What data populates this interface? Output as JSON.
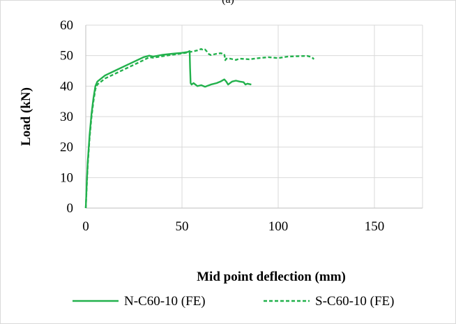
{
  "header_fragment": "(a)",
  "chart_data": {
    "type": "line",
    "xlabel": "Mid point deflection (mm)",
    "ylabel": "Load (kN)",
    "xlim": [
      0,
      175
    ],
    "ylim": [
      0,
      60
    ],
    "x_ticks": [
      0,
      50,
      100,
      150
    ],
    "y_ticks": [
      0,
      10,
      20,
      30,
      40,
      50,
      60
    ],
    "grid": "vertical and horizontal major gridlines",
    "legend_position": "bottom",
    "colors": {
      "series": "#22b14c",
      "grid": "#d9d9d9",
      "axis": "#bfbfbf"
    },
    "series": [
      {
        "name": "N-C60-10 (FE)",
        "style": "solid",
        "points": [
          [
            0,
            0
          ],
          [
            0.5,
            8
          ],
          [
            1,
            15
          ],
          [
            2,
            24
          ],
          [
            3,
            31
          ],
          [
            4,
            36
          ],
          [
            5,
            40
          ],
          [
            6,
            41.5
          ],
          [
            8,
            42.5
          ],
          [
            10,
            43.5
          ],
          [
            15,
            45
          ],
          [
            20,
            46.5
          ],
          [
            25,
            48
          ],
          [
            30,
            49.5
          ],
          [
            33,
            50
          ],
          [
            35,
            49.7
          ],
          [
            40,
            50.3
          ],
          [
            45,
            50.6
          ],
          [
            50,
            50.9
          ],
          [
            53,
            51.2
          ],
          [
            54,
            51.5
          ],
          [
            54.2,
            46
          ],
          [
            54.5,
            41
          ],
          [
            55,
            40.5
          ],
          [
            56,
            41
          ],
          [
            58,
            40
          ],
          [
            60,
            40.3
          ],
          [
            62,
            39.8
          ],
          [
            65,
            40.5
          ],
          [
            68,
            41
          ],
          [
            70,
            41.5
          ],
          [
            72,
            42.2
          ],
          [
            73,
            41.5
          ],
          [
            74,
            40.5
          ],
          [
            76,
            41.5
          ],
          [
            78,
            41.8
          ],
          [
            80,
            41.5
          ],
          [
            82,
            41.3
          ],
          [
            83,
            40.5
          ],
          [
            84,
            40.8
          ],
          [
            86,
            40.5
          ]
        ]
      },
      {
        "name": "S-C60-10 (FE)",
        "style": "dashed",
        "points": [
          [
            0,
            0
          ],
          [
            0.5,
            7
          ],
          [
            1,
            14
          ],
          [
            2,
            23
          ],
          [
            3,
            30
          ],
          [
            4,
            35
          ],
          [
            5,
            39
          ],
          [
            6,
            40.5
          ],
          [
            8,
            41.5
          ],
          [
            10,
            42.5
          ],
          [
            15,
            44
          ],
          [
            20,
            45.5
          ],
          [
            25,
            47
          ],
          [
            30,
            48.5
          ],
          [
            33,
            49.5
          ],
          [
            35,
            49.3
          ],
          [
            40,
            49.8
          ],
          [
            45,
            50.3
          ],
          [
            50,
            50.7
          ],
          [
            55,
            51.3
          ],
          [
            58,
            51.7
          ],
          [
            60,
            52.2
          ],
          [
            61,
            51.8
          ],
          [
            62,
            52
          ],
          [
            63,
            51.3
          ],
          [
            64,
            50.5
          ],
          [
            65,
            50.2
          ],
          [
            68,
            50.6
          ],
          [
            70,
            50.8
          ],
          [
            72,
            50.5
          ],
          [
            72.5,
            48.5
          ],
          [
            73,
            49
          ],
          [
            75,
            49
          ],
          [
            78,
            48.6
          ],
          [
            80,
            49
          ],
          [
            85,
            48.8
          ],
          [
            90,
            49.2
          ],
          [
            95,
            49.5
          ],
          [
            100,
            49.2
          ],
          [
            105,
            49.7
          ],
          [
            110,
            49.8
          ],
          [
            115,
            49.9
          ],
          [
            117,
            49.6
          ],
          [
            118,
            49.2
          ],
          [
            118.5,
            48.8
          ]
        ]
      }
    ]
  }
}
